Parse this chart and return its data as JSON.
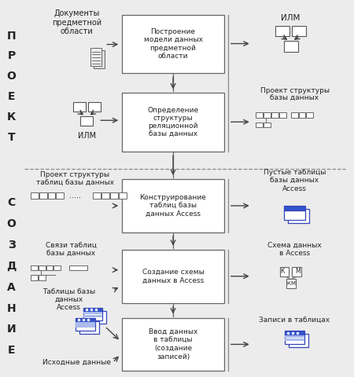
{
  "bg_color": "#ececec",
  "box_color": "#ffffff",
  "box_edge": "#666666",
  "text_color": "#222222",
  "sidebar_proekt": [
    "П",
    "Р",
    "О",
    "Е",
    "К",
    "Т"
  ],
  "sidebar_sozdanie": [
    "С",
    "О",
    "З",
    "Д",
    "А",
    "Н",
    "И",
    "Е"
  ],
  "box1_text": "Построение\nмодели данных\nпредметной\nобласти",
  "box2_text": "Определение\nструктуры\nреляционной\nбазы данных",
  "box3_text": "Конструирование\nтаблиц базы\nданных Access",
  "box4_text": "Создание схемы\nданных в Access",
  "box5_text": "Ввод данных\nв таблицы\n(создание\nзаписей)",
  "label_doc": "Документы\nпредметной\nобласти",
  "label_ilm_top": "ИЛМ",
  "label_ilm_left": "ИЛМ",
  "label_proj_struct": "Проект структуры\nбазы данных",
  "label_proj_tables": "Проект структуры\nтаблиц базы данных",
  "label_empty_tables": "Пустые таблицы\nбазы данных\nAccess",
  "label_svyazi": "Связи таблиц\nбазы данных",
  "label_tablitsy": "Таблицы базы\nданных\nAccess",
  "label_schema": "Схема данных\nв Access",
  "label_zapisi": "Записи в таблицах",
  "label_isxod": "Исходные данные"
}
